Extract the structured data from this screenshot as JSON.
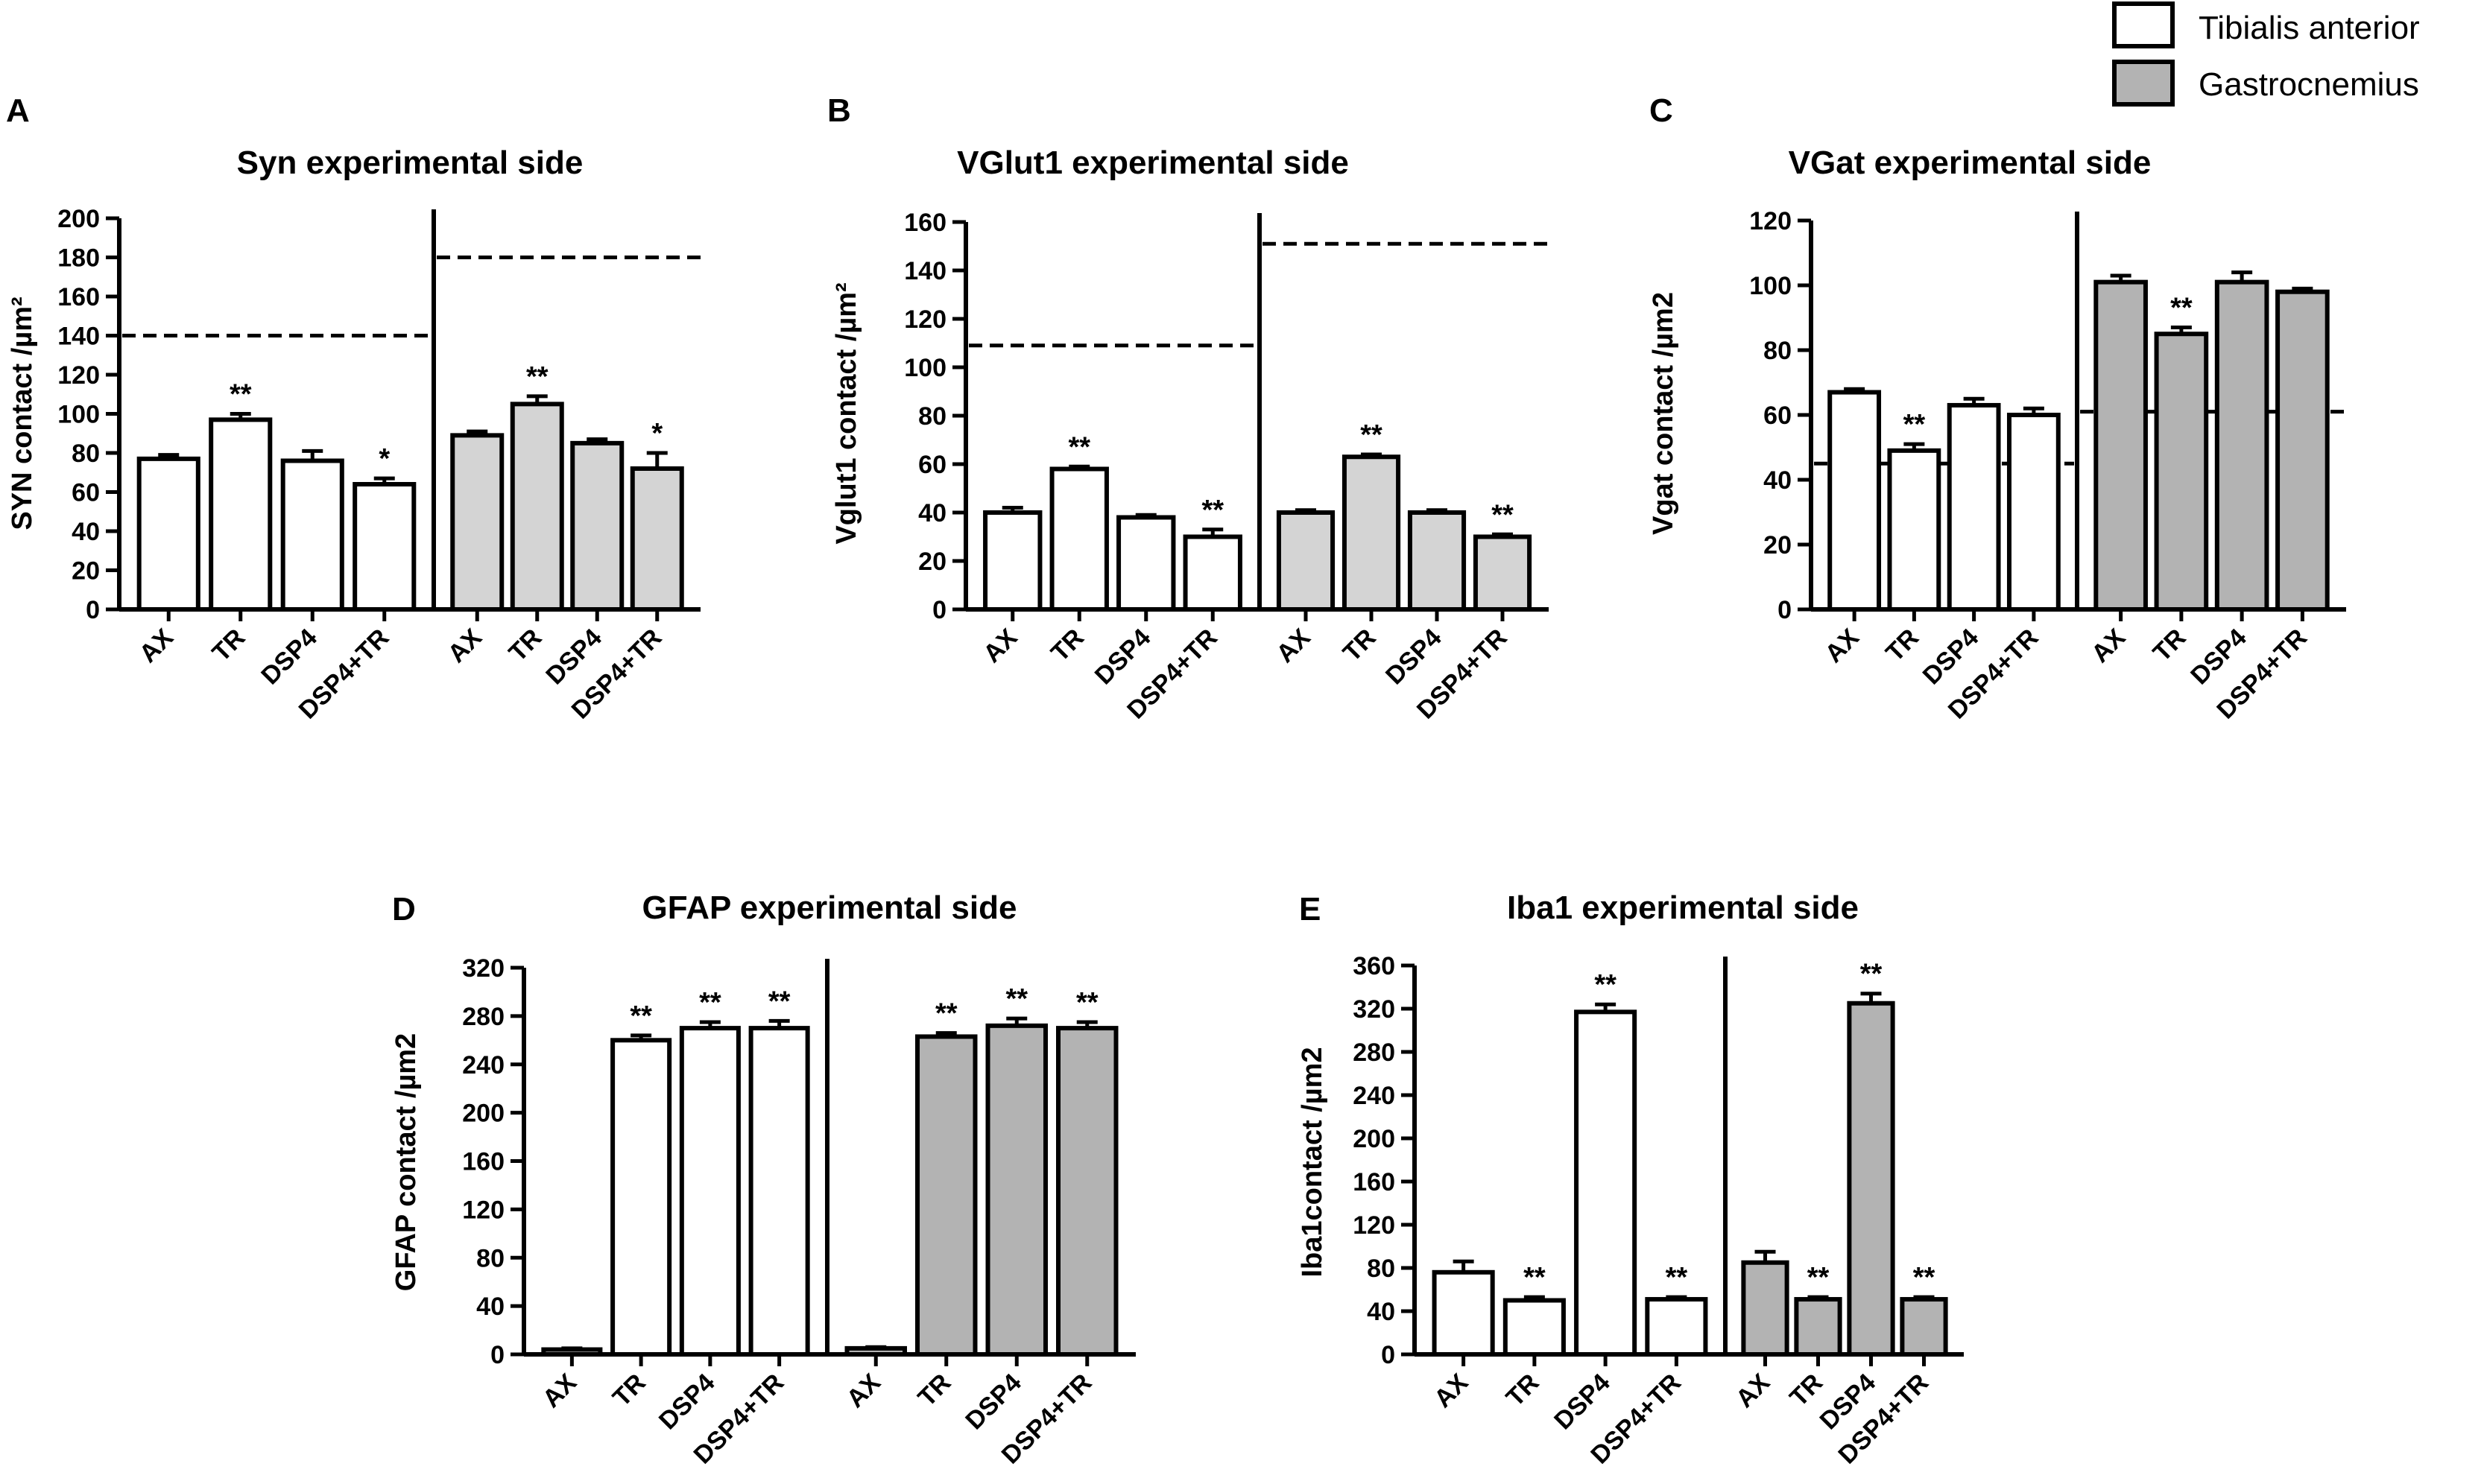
{
  "legend": {
    "position": "top-right",
    "items": [
      {
        "label": "Tibialis anterior",
        "color": "#ffffff"
      },
      {
        "label": "Gastrocnemius",
        "color": "#b3b3b3"
      }
    ]
  },
  "chart_data": [
    {
      "panel": "A",
      "type": "bar",
      "title": "Syn experimental side",
      "ylabel": "SYN contact /µm²",
      "ylim": [
        0,
        200
      ],
      "yticks": [
        0,
        20,
        40,
        60,
        80,
        100,
        120,
        140,
        160,
        180,
        200
      ],
      "categories": [
        "AX",
        "TR",
        "DSP4",
        "DSP4+TR"
      ],
      "series": [
        {
          "name": "Tibialis anterior",
          "color": "#ffffff",
          "values": [
            77,
            97,
            76,
            64
          ],
          "errors": [
            2,
            3,
            5,
            3
          ],
          "significance": [
            "",
            "**",
            "",
            "*"
          ],
          "reference": 140
        },
        {
          "name": "Gastrocnemius",
          "color": "#d4d4d4",
          "values": [
            89,
            105,
            85,
            72
          ],
          "errors": [
            2,
            4,
            2,
            8
          ],
          "significance": [
            "",
            "**",
            "",
            "*"
          ],
          "reference": 180
        }
      ]
    },
    {
      "panel": "B",
      "type": "bar",
      "title": "VGlut1 experimental side",
      "ylabel": "Vglut1 contact /µm²",
      "ylim": [
        0,
        160
      ],
      "yticks": [
        0,
        20,
        40,
        60,
        80,
        100,
        120,
        140,
        160
      ],
      "categories": [
        "AX",
        "TR",
        "DSP4",
        "DSP4+TR"
      ],
      "series": [
        {
          "name": "Tibialis anterior",
          "color": "#ffffff",
          "values": [
            40,
            58,
            38,
            30
          ],
          "errors": [
            2,
            1,
            1,
            3
          ],
          "significance": [
            "",
            "**",
            "",
            "**"
          ],
          "reference": 109
        },
        {
          "name": "Gastrocnemius",
          "color": "#d4d4d4",
          "values": [
            40,
            63,
            40,
            30
          ],
          "errors": [
            1,
            1,
            1,
            1
          ],
          "significance": [
            "",
            "**",
            "",
            "**"
          ],
          "reference": 151
        }
      ]
    },
    {
      "panel": "C",
      "type": "bar",
      "title": "VGat experimental side",
      "ylabel": "Vgat contact /µm2",
      "ylim": [
        0,
        120
      ],
      "yticks": [
        0,
        20,
        40,
        60,
        80,
        100,
        120
      ],
      "categories": [
        "AX",
        "TR",
        "DSP4",
        "DSP4+TR"
      ],
      "series": [
        {
          "name": "Tibialis anterior",
          "color": "#ffffff",
          "values": [
            67,
            49,
            63,
            60
          ],
          "errors": [
            1,
            2,
            2,
            2
          ],
          "significance": [
            "",
            "**",
            "",
            ""
          ],
          "reference": 45
        },
        {
          "name": "Gastrocnemius",
          "color": "#b3b3b3",
          "values": [
            101,
            85,
            101,
            98
          ],
          "errors": [
            2,
            2,
            3,
            1
          ],
          "significance": [
            "",
            "**",
            "",
            ""
          ],
          "reference": 61
        }
      ]
    },
    {
      "panel": "D",
      "type": "bar",
      "title": "GFAP experimental side",
      "ylabel": "GFAP contact /µm2",
      "ylim": [
        0,
        320
      ],
      "yticks": [
        0,
        40,
        80,
        120,
        160,
        200,
        240,
        280,
        320
      ],
      "categories": [
        "AX",
        "TR",
        "DSP4",
        "DSP4+TR"
      ],
      "series": [
        {
          "name": "Tibialis anterior",
          "color": "#ffffff",
          "values": [
            4,
            260,
            270,
            270
          ],
          "errors": [
            1,
            4,
            5,
            6
          ],
          "significance": [
            "",
            "**",
            "**",
            "**"
          ],
          "reference": null
        },
        {
          "name": "Gastrocnemius",
          "color": "#b3b3b3",
          "values": [
            5,
            263,
            272,
            270
          ],
          "errors": [
            1,
            3,
            6,
            5
          ],
          "significance": [
            "",
            "**",
            "**",
            "**"
          ],
          "reference": null
        }
      ]
    },
    {
      "panel": "E",
      "type": "bar",
      "title": "Iba1 experimental side",
      "ylabel": "Iba1contact /µm2",
      "ylim": [
        0,
        360
      ],
      "yticks": [
        0,
        40,
        80,
        120,
        160,
        200,
        240,
        280,
        320,
        360
      ],
      "categories": [
        "AX",
        "TR",
        "DSP4",
        "DSP4+TR"
      ],
      "series": [
        {
          "name": "Tibialis anterior",
          "color": "#ffffff",
          "values": [
            76,
            50,
            317,
            51
          ],
          "errors": [
            10,
            3,
            7,
            2
          ],
          "significance": [
            "",
            "**",
            "**",
            "**"
          ],
          "reference": null
        },
        {
          "name": "Gastrocnemius",
          "color": "#b3b3b3",
          "values": [
            85,
            51,
            325,
            51
          ],
          "errors": [
            10,
            2,
            9,
            2
          ],
          "significance": [
            "",
            "**",
            "**",
            "**"
          ],
          "reference": null
        }
      ]
    }
  ]
}
